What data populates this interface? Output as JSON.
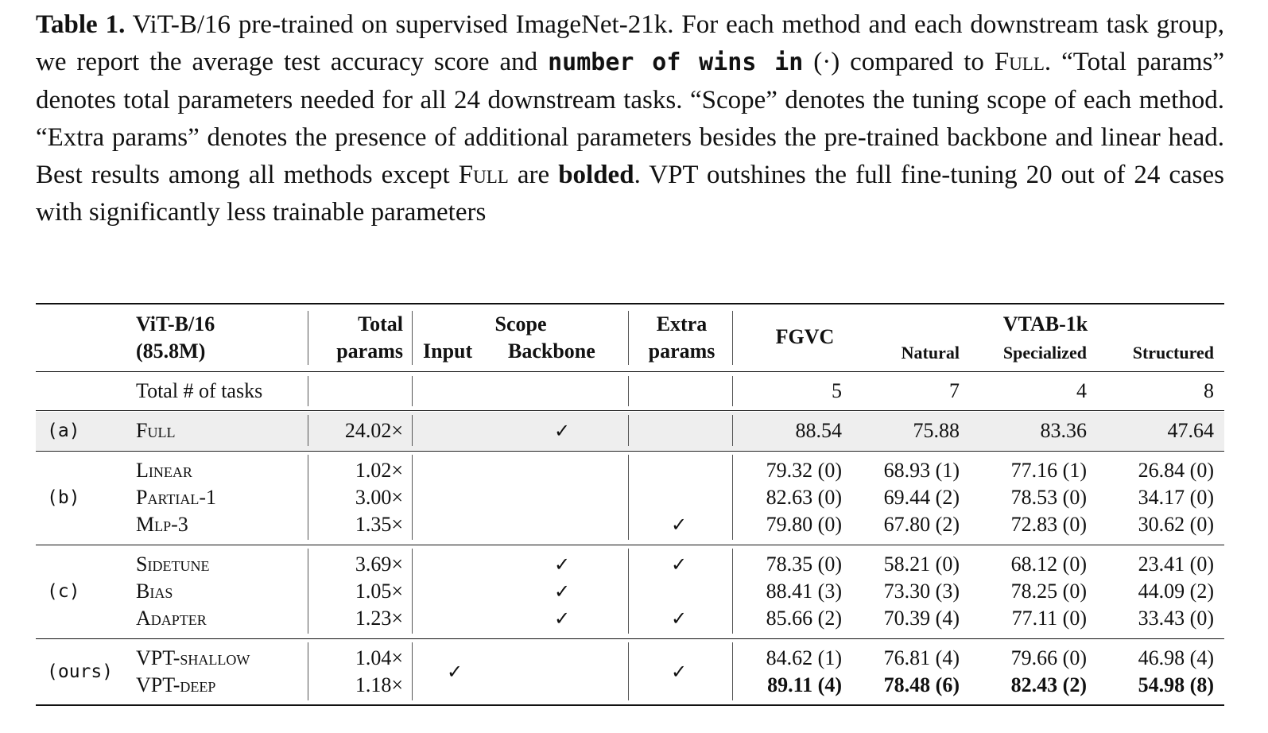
{
  "caption": {
    "label": "Table 1.",
    "text_1": " ViT-B/16 pre-trained on supervised ImageNet-21k. For each method and each downstream task group, we report the average test accuracy score and ",
    "mono": "number of wins in",
    "text_2": " (·) compared to ",
    "full_sc": "Full",
    "text_3": ". “Total params” denotes total parameters needed for all 24 downstream tasks. “Scope” denotes the tuning scope of each method. “Extra params” denotes the presence of additional parameters besides the pre-trained backbone and linear head. Best results among all methods except ",
    "full_sc2": "Full",
    "text_4": " are ",
    "bolded": "bolded",
    "text_5": ". VPT outshines the full fine-tuning 20 out of 24 cases with significantly less trainable parameters"
  },
  "header": {
    "model": "ViT-B/16",
    "model_params": "(85.8M)",
    "total": "Total",
    "params": "params",
    "scope": "Scope",
    "input": "Input",
    "backbone": "Backbone",
    "extra": "Extra",
    "extra_params": "params",
    "fgvc": "FGVC",
    "vtab": "VTAB-1k",
    "natural": "Natural",
    "specialized": "Specialized",
    "structured": "Structured"
  },
  "tasks_row": {
    "label": "Total # of tasks",
    "values": [
      "5",
      "7",
      "4",
      "8"
    ]
  },
  "check": "✓",
  "groups": [
    {
      "label": "(a)",
      "rows": [
        {
          "name": "Full",
          "total": "24.02×",
          "input": false,
          "backbone": true,
          "extra": false,
          "vals": [
            "88.54",
            "75.88",
            "83.36",
            "47.64"
          ]
        }
      ]
    },
    {
      "label": "(b)",
      "rows": [
        {
          "name": "Linear",
          "total": "1.02×",
          "input": false,
          "backbone": false,
          "extra": false,
          "vals": [
            "79.32 (0)",
            "68.93 (1)",
            "77.16 (1)",
            "26.84 (0)"
          ]
        },
        {
          "name": "Partial-1",
          "total": "3.00×",
          "input": false,
          "backbone": false,
          "extra": false,
          "vals": [
            "82.63 (0)",
            "69.44 (2)",
            "78.53 (0)",
            "34.17 (0)"
          ]
        },
        {
          "name": "Mlp-3",
          "total": "1.35×",
          "input": false,
          "backbone": false,
          "extra": true,
          "vals": [
            "79.80 (0)",
            "67.80 (2)",
            "72.83 (0)",
            "30.62 (0)"
          ]
        }
      ]
    },
    {
      "label": "(c)",
      "rows": [
        {
          "name": "Sidetune",
          "total": "3.69×",
          "input": false,
          "backbone": true,
          "extra": true,
          "vals": [
            "78.35 (0)",
            "58.21 (0)",
            "68.12 (0)",
            "23.41 (0)"
          ]
        },
        {
          "name": "Bias",
          "total": "1.05×",
          "input": false,
          "backbone": true,
          "extra": false,
          "vals": [
            "88.41 (3)",
            "73.30 (3)",
            "78.25 (0)",
            "44.09 (2)"
          ]
        },
        {
          "name": "Adapter",
          "total": "1.23×",
          "input": false,
          "backbone": true,
          "extra": true,
          "vals": [
            "85.66 (2)",
            "70.39 (4)",
            "77.11 (0)",
            "33.43 (0)"
          ]
        }
      ]
    },
    {
      "label": "(ours)",
      "rows": [
        {
          "name": "VPT-shallow",
          "total": "1.04×",
          "vals": [
            "84.62 (1)",
            "76.81 (4)",
            "79.66 (0)",
            "46.98 (4)"
          ],
          "bold": false
        },
        {
          "name": "VPT-deep",
          "total": "1.18×",
          "vals": [
            "89.11 (4)",
            "78.48 (6)",
            "82.43 (2)",
            "54.98 (8)"
          ],
          "bold": true
        }
      ]
    }
  ]
}
